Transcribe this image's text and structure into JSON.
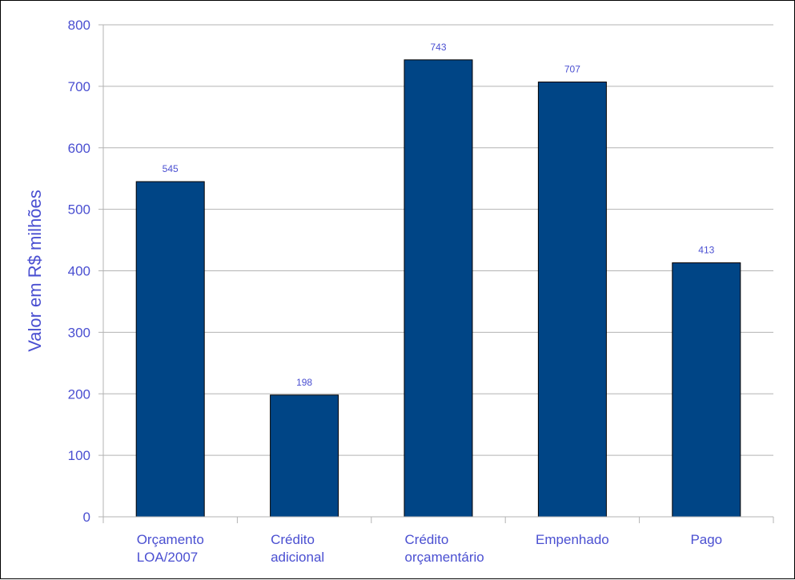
{
  "chart_data": {
    "type": "bar",
    "title": "",
    "xlabel": "",
    "ylabel": "Valor em R$ milhões",
    "categories": [
      [
        "Orçamento",
        "LOA/2007"
      ],
      [
        "Crédito",
        "adicional"
      ],
      [
        "Crédito",
        "orçamentário"
      ],
      [
        "Empenhado"
      ],
      [
        "Pago"
      ]
    ],
    "values": [
      545,
      198,
      743,
      707,
      413
    ],
    "data_labels": [
      "545",
      "198",
      "743",
      "707",
      "413"
    ],
    "ylim": [
      0,
      800
    ],
    "yticks": [
      0,
      100,
      200,
      300,
      400,
      500,
      600,
      700,
      800
    ],
    "grid": true,
    "legend": "none"
  },
  "colors": {
    "bar_fill": "#004586",
    "bar_stroke": "#000000",
    "text": "#4a4fd1",
    "grid": "#b3b3b3",
    "axis": "#b3b3b3"
  }
}
